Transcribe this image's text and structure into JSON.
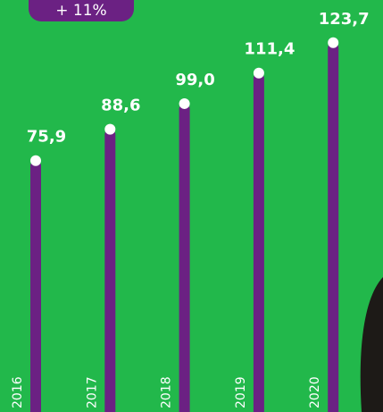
{
  "chart_data": {
    "type": "bar",
    "badge": "+ 11%",
    "categories": [
      "2016",
      "2017",
      "2018",
      "2019",
      "2020"
    ],
    "values": [
      75.9,
      88.6,
      99.0,
      111.4,
      123.7
    ],
    "value_labels": [
      "75,9",
      "88,6",
      "99,0",
      "111,4",
      "123,7"
    ],
    "color": "#6b2183",
    "ylim": [
      -26,
      141
    ]
  }
}
